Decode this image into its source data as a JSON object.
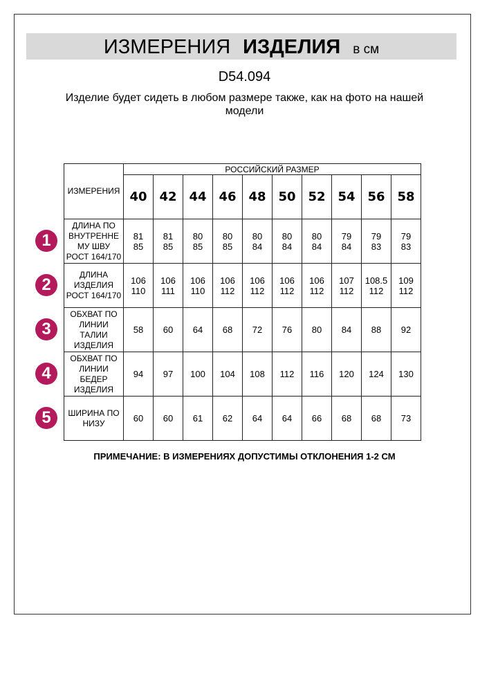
{
  "title": {
    "part1": "ИЗМЕРЕНИЯ",
    "part2": "ИЗДЕЛИЯ",
    "unit": "в см"
  },
  "article_code": "D54.094",
  "description": "Изделие будет сидеть в любом размере также, как на фото на нашей модели",
  "accent_color": "#b3195b",
  "table": {
    "corner_header": "ИЗМЕРЕНИЯ",
    "group_header": "РОССИЙСКИЙ РАЗМЕР",
    "sizes": [
      "40",
      "42",
      "44",
      "46",
      "48",
      "50",
      "52",
      "54",
      "56",
      "58"
    ],
    "rows": [
      {
        "badge": "1",
        "label": "ДЛИНА ПО\nВНУТРЕННЕ\nМУ ШВУ\nРОСТ 164/170",
        "values": [
          "81\n85",
          "81\n85",
          "80\n85",
          "80\n85",
          "80\n84",
          "80\n84",
          "80\n84",
          "79\n84",
          "79\n83",
          "79\n83"
        ]
      },
      {
        "badge": "2",
        "label": "ДЛИНА\nИЗДЕЛИЯ\nРОСТ 164/170",
        "values": [
          "106\n110",
          "106\n111",
          "106\n110",
          "106\n112",
          "106\n112",
          "106\n112",
          "106\n112",
          "107\n112",
          "108.5\n112",
          "109\n112"
        ]
      },
      {
        "badge": "3",
        "label": "ОБХВАТ ПО\nЛИНИИ\nТАЛИИ\nИЗДЕЛИЯ",
        "values": [
          "58",
          "60",
          "64",
          "68",
          "72",
          "76",
          "80",
          "84",
          "88",
          "92"
        ]
      },
      {
        "badge": "4",
        "label": "ОБХВАТ ПО\nЛИНИИ\nБЕДЕР\nИЗДЕЛИЯ",
        "values": [
          "94",
          "97",
          "100",
          "104",
          "108",
          "112",
          "116",
          "120",
          "124",
          "130"
        ]
      },
      {
        "badge": "5",
        "label": "ШИРИНА ПО\nНИЗУ",
        "values": [
          "60",
          "60",
          "61",
          "62",
          "64",
          "64",
          "66",
          "68",
          "68",
          "73"
        ]
      }
    ]
  },
  "note": "ПРИМЕЧАНИЕ: В ИЗМЕРЕНИЯХ ДОПУСТИМЫ ОТКЛОНЕНИЯ 1-2 СМ"
}
